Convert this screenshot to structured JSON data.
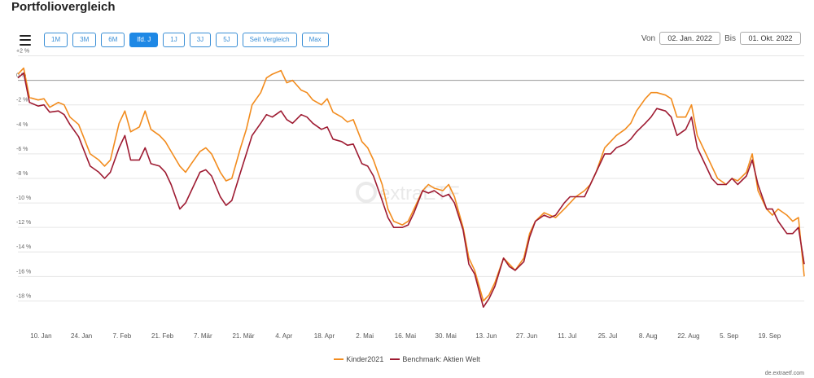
{
  "page": {
    "title": "Portfoliovergleich",
    "credit": "de.extraetf.com"
  },
  "toolbar": {
    "menu_icon": "hamburger-menu-icon",
    "ranges": [
      {
        "label": "1M",
        "active": false
      },
      {
        "label": "3M",
        "active": false
      },
      {
        "label": "6M",
        "active": false
      },
      {
        "label": "lfd. J",
        "active": true
      },
      {
        "label": "1J",
        "active": false
      },
      {
        "label": "3J",
        "active": false
      },
      {
        "label": "5J",
        "active": false
      },
      {
        "label": "Seit Vergleich",
        "active": false
      },
      {
        "label": "Max",
        "active": false
      }
    ],
    "from_label": "Von",
    "from_value": "02. Jan. 2022",
    "to_label": "Bis",
    "to_value": "01. Okt. 2022"
  },
  "watermark": "extraETF",
  "chart_data": {
    "type": "line",
    "ylim": [
      -19.5,
      2.3
    ],
    "y_ticks": [
      2,
      0,
      -2,
      -4,
      -6,
      -8,
      -10,
      -12,
      -14,
      -16,
      -18
    ],
    "y_tick_labels": [
      "+2 %",
      "0 %",
      "-2 %",
      "-4 %",
      "-6 %",
      "-8 %",
      "-10 %",
      "-12 %",
      "-14 %",
      "-16 %",
      "-18 %"
    ],
    "x_tick_labels": [
      "10. Jan",
      "24. Jan",
      "7. Feb",
      "21. Feb",
      "7. Mär",
      "21. Mär",
      "4. Apr",
      "18. Apr",
      "2. Mai",
      "16. Mai",
      "30. Mai",
      "13. Jun",
      "27. Jun",
      "11. Jul",
      "25. Jul",
      "8. Aug",
      "22. Aug",
      "5. Sep",
      "19. Sep"
    ],
    "x_tick_days": [
      8,
      22,
      36,
      50,
      64,
      78,
      92,
      106,
      120,
      134,
      148,
      162,
      176,
      190,
      204,
      218,
      232,
      246,
      260
    ],
    "x_range_days": [
      0,
      272
    ],
    "series": [
      {
        "name": "Kinder2021",
        "color": "#f28c1e",
        "days": [
          0,
          2,
          4,
          7,
          9,
          11,
          14,
          16,
          18,
          21,
          23,
          25,
          28,
          30,
          32,
          35,
          37,
          39,
          42,
          44,
          46,
          49,
          51,
          53,
          56,
          58,
          60,
          63,
          65,
          67,
          70,
          72,
          74,
          77,
          79,
          81,
          84,
          86,
          88,
          91,
          93,
          95,
          98,
          100,
          102,
          105,
          107,
          109,
          112,
          114,
          116,
          119,
          121,
          123,
          126,
          128,
          130,
          133,
          135,
          137,
          140,
          142,
          144,
          147,
          149,
          151,
          154,
          156,
          158,
          161,
          163,
          165,
          168,
          170,
          172,
          175,
          177,
          179,
          182,
          184,
          186,
          189,
          191,
          193,
          196,
          198,
          200,
          203,
          205,
          207,
          210,
          212,
          214,
          217,
          219,
          221,
          224,
          226,
          228,
          231,
          233,
          235,
          238,
          240,
          242,
          245,
          247,
          249,
          252,
          254,
          256,
          259,
          261,
          263,
          266,
          268,
          270,
          272
        ],
        "values": [
          0.5,
          1.0,
          -1.4,
          -1.6,
          -1.5,
          -2.2,
          -1.8,
          -2.0,
          -3.0,
          -3.6,
          -4.8,
          -6.0,
          -6.5,
          -7.0,
          -6.5,
          -3.5,
          -2.5,
          -4.2,
          -3.8,
          -2.5,
          -4.0,
          -4.5,
          -5.0,
          -5.8,
          -7.0,
          -7.5,
          -6.8,
          -5.8,
          -5.5,
          -6.0,
          -7.5,
          -8.2,
          -8.0,
          -5.5,
          -4.0,
          -2.0,
          -1.0,
          0.2,
          0.5,
          0.8,
          -0.2,
          0.0,
          -0.8,
          -1.0,
          -1.6,
          -2.0,
          -1.5,
          -2.6,
          -3.0,
          -3.4,
          -3.2,
          -5.0,
          -5.5,
          -6.5,
          -8.5,
          -10.5,
          -11.5,
          -11.8,
          -11.5,
          -10.5,
          -9.0,
          -8.5,
          -8.8,
          -9.0,
          -8.5,
          -9.5,
          -12.0,
          -14.5,
          -15.5,
          -18.0,
          -17.5,
          -16.5,
          -14.5,
          -15.0,
          -15.5,
          -14.5,
          -12.5,
          -11.5,
          -10.8,
          -11.0,
          -11.2,
          -10.5,
          -10.0,
          -9.5,
          -9.0,
          -8.5,
          -7.5,
          -5.5,
          -5.0,
          -4.5,
          -4.0,
          -3.5,
          -2.5,
          -1.5,
          -1.0,
          -1.0,
          -1.2,
          -1.5,
          -3.0,
          -3.0,
          -2.0,
          -4.5,
          -6.0,
          -7.0,
          -8.0,
          -8.5,
          -8.0,
          -8.2,
          -7.5,
          -6.0,
          -9.0,
          -10.5,
          -11.0,
          -10.5,
          -11.0,
          -11.5,
          -11.2,
          -16.0
        ],
        "anchors_by_day": {}
      },
      {
        "name": "Benchmark: Aktien Welt",
        "color": "#9e1b32",
        "days": [
          0,
          2,
          4,
          7,
          9,
          11,
          14,
          16,
          18,
          21,
          23,
          25,
          28,
          30,
          32,
          35,
          37,
          39,
          42,
          44,
          46,
          49,
          51,
          53,
          56,
          58,
          60,
          63,
          65,
          67,
          70,
          72,
          74,
          77,
          79,
          81,
          84,
          86,
          88,
          91,
          93,
          95,
          98,
          100,
          102,
          105,
          107,
          109,
          112,
          114,
          116,
          119,
          121,
          123,
          126,
          128,
          130,
          133,
          135,
          137,
          140,
          142,
          144,
          147,
          149,
          151,
          154,
          156,
          158,
          161,
          163,
          165,
          168,
          170,
          172,
          175,
          177,
          179,
          182,
          184,
          186,
          189,
          191,
          193,
          196,
          198,
          200,
          203,
          205,
          207,
          210,
          212,
          214,
          217,
          219,
          221,
          224,
          226,
          228,
          231,
          233,
          235,
          238,
          240,
          242,
          245,
          247,
          249,
          252,
          254,
          256,
          259,
          261,
          263,
          266,
          268,
          270,
          272
        ],
        "values": [
          0.2,
          0.6,
          -1.8,
          -2.1,
          -2.0,
          -2.6,
          -2.5,
          -2.8,
          -3.6,
          -4.6,
          -5.8,
          -7.0,
          -7.5,
          -8.0,
          -7.5,
          -5.5,
          -4.5,
          -6.5,
          -6.5,
          -5.5,
          -6.8,
          -7.0,
          -7.5,
          -8.5,
          -10.5,
          -10.0,
          -9.0,
          -7.5,
          -7.3,
          -7.8,
          -9.5,
          -10.2,
          -9.8,
          -7.5,
          -6.0,
          -4.5,
          -3.5,
          -2.8,
          -3.0,
          -2.5,
          -3.2,
          -3.5,
          -2.8,
          -3.0,
          -3.5,
          -4.0,
          -3.8,
          -4.8,
          -5.0,
          -5.3,
          -5.2,
          -6.8,
          -7.0,
          -7.8,
          -9.8,
          -11.2,
          -12.0,
          -12.0,
          -11.8,
          -10.8,
          -9.0,
          -9.2,
          -9.0,
          -9.5,
          -9.3,
          -10.0,
          -12.2,
          -15.0,
          -15.8,
          -18.5,
          -17.8,
          -16.8,
          -14.5,
          -15.2,
          -15.5,
          -14.8,
          -12.8,
          -11.5,
          -11.0,
          -11.2,
          -11.0,
          -10.0,
          -9.5,
          -9.5,
          -9.5,
          -8.5,
          -7.5,
          -6.0,
          -6.0,
          -5.5,
          -5.2,
          -4.8,
          -4.2,
          -3.5,
          -3.0,
          -2.3,
          -2.5,
          -3.0,
          -4.5,
          -4.0,
          -3.0,
          -5.5,
          -7.0,
          -8.0,
          -8.5,
          -8.5,
          -8.0,
          -8.5,
          -7.8,
          -6.5,
          -8.5,
          -10.5,
          -10.5,
          -11.5,
          -12.5,
          -12.5,
          -12.0,
          -15.0
        ]
      }
    ],
    "grid": true,
    "legend": "bottom-center"
  }
}
